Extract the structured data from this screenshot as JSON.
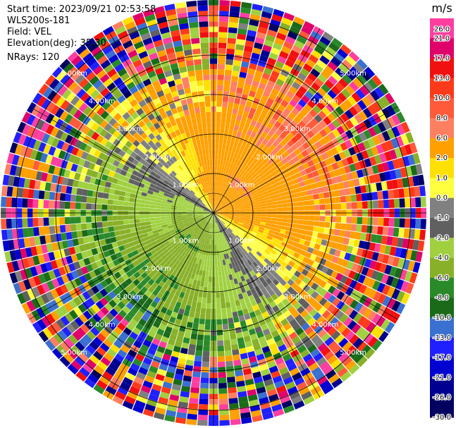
{
  "header": {
    "start_time": "Start time: 2023/09/21 02:53:58",
    "instrument": "WLS200s-181",
    "field": "Field: VEL",
    "elevation": "Elevation(deg): 35.30",
    "nrays": "NRays: 120"
  },
  "colorbar": {
    "unit": "m/s",
    "ticks": [
      "26.0",
      "21.0",
      "17.0",
      "13.0",
      "10.0",
      "8.0",
      "6.0",
      "2.0",
      "1.0",
      "0.0",
      "-1.0",
      "-2.0",
      "-4.0",
      "-6.0",
      "-8.0",
      "-10.0",
      "-13.0",
      "-17.0",
      "-21.0",
      "-26.0",
      "-30.0"
    ],
    "colors": [
      "#ff3fa0",
      "#e0006a",
      "#f01010",
      "#ff3a1a",
      "#ff5a3a",
      "#ff8060",
      "#ffa000",
      "#ffe000",
      "#ffff40",
      "#808080",
      "#606060",
      "#a0d040",
      "#88b028",
      "#2a8a2a",
      "#1a6a1a",
      "#3a70d0",
      "#2020ff",
      "#0000d0",
      "#000090",
      "#000060"
    ]
  },
  "chart_data": {
    "type": "polar_ppi",
    "title": "",
    "field": "VEL",
    "units": "m/s",
    "range_ring_labels": [
      "1.00km",
      "2.00km",
      "3.00km",
      "4.00km",
      "5.00km"
    ],
    "range_ring_labels_axis": [
      "1.00km",
      "2.00km",
      "3.00km",
      "4.00km",
      "5.00km"
    ],
    "max_range_km": 5.6,
    "nrays": 120,
    "elevation_deg": 35.3,
    "color_scale_bounds": [
      -30,
      -26,
      -21,
      -17,
      -13,
      -10,
      -8,
      -6,
      -4,
      -2,
      -1,
      0,
      1,
      2,
      6,
      8,
      10,
      13,
      17,
      21,
      26
    ],
    "pattern_summary": {
      "near_range_toward_sw_color": "#3a70d0",
      "near_range_toward_ne_color": "#ff5a3a",
      "mid_range_west_color": "#2a8a2a",
      "mid_range_east_color": "#ffa000",
      "far_range": "noisy"
    }
  }
}
